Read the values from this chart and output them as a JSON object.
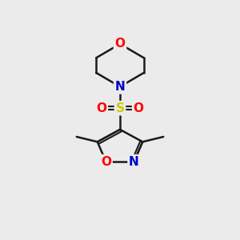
{
  "background_color": "#ebebeb",
  "bond_color": "#1a1a1a",
  "atom_colors": {
    "O": "#ff0000",
    "N": "#0000cc",
    "S": "#cccc00",
    "C": "#1a1a1a"
  },
  "figsize": [
    3.0,
    3.0
  ],
  "dpi": 100
}
